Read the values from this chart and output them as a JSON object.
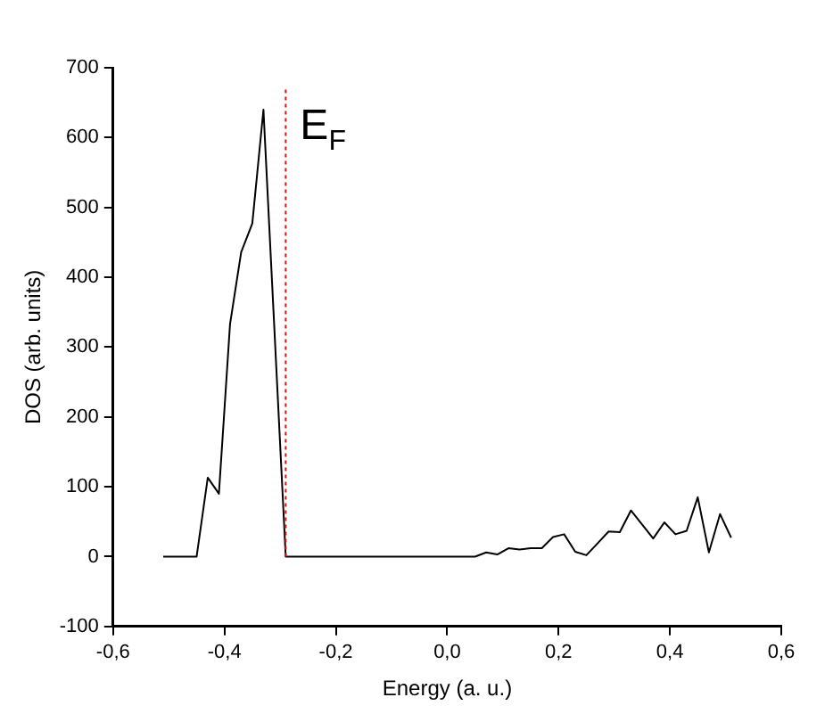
{
  "chart_data": {
    "type": "line",
    "xlabel": "Energy (a. u.)",
    "ylabel": "DOS (arb. units)",
    "series": [
      {
        "color": "#000000",
        "x": [
          -0.51,
          -0.45,
          -0.43,
          -0.41,
          -0.39,
          -0.37,
          -0.35,
          -0.33,
          -0.29,
          0.05,
          0.07,
          0.09,
          0.11,
          0.13,
          0.15,
          0.17,
          0.19,
          0.21,
          0.23,
          0.25,
          0.27,
          0.29,
          0.31,
          0.33,
          0.35,
          0.37,
          0.39,
          0.41,
          0.43,
          0.45,
          0.47,
          0.49,
          0.51
        ],
        "values": [
          0,
          0,
          113,
          90,
          333,
          436,
          477,
          640,
          0,
          0,
          6,
          3,
          12,
          10,
          12,
          12,
          28,
          32,
          7,
          2,
          19,
          36,
          35,
          66,
          46,
          26,
          49,
          32,
          37,
          85,
          6,
          61,
          27
        ]
      }
    ],
    "xlim": [
      -0.6,
      0.6
    ],
    "ylim": [
      -100,
      700
    ],
    "xticks": [
      {
        "value": -0.6,
        "label": "-0,6"
      },
      {
        "value": -0.4,
        "label": "-0,4"
      },
      {
        "value": -0.2,
        "label": "-0,2"
      },
      {
        "value": 0,
        "label": "0,0"
      },
      {
        "value": 0.2,
        "label": "0,2"
      },
      {
        "value": 0.4,
        "label": "0,4"
      },
      {
        "value": 0.6,
        "label": "0,6"
      }
    ],
    "yticks": [
      -100,
      0,
      100,
      200,
      300,
      400,
      500,
      600,
      700
    ],
    "grid": false,
    "marker": "none",
    "line_style": "solid",
    "ref_lines": [
      {
        "axis": "x",
        "value": -0.29,
        "label": "E$_{F}$",
        "color": "#ff0000",
        "line_style": "dotted"
      }
    ]
  }
}
